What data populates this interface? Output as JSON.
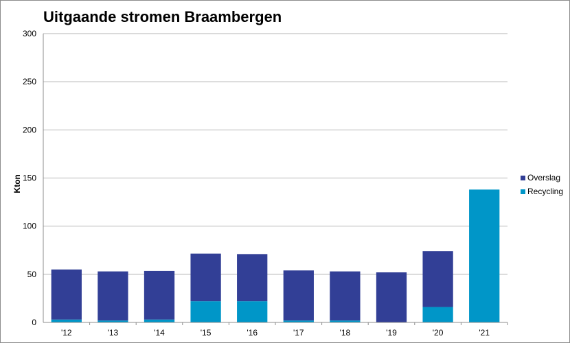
{
  "chart_data": {
    "type": "bar",
    "stacked": true,
    "title": "Uitgaande stromen Braambergen",
    "xlabel": "",
    "ylabel": "Kton",
    "ylim": [
      0,
      300
    ],
    "yticks": [
      0,
      50,
      100,
      150,
      200,
      250,
      300
    ],
    "grid": true,
    "legend_position": "right",
    "categories": [
      "'12",
      "'13",
      "'14",
      "'15",
      "'16",
      "'17",
      "'18",
      "'19",
      "'20",
      "'21"
    ],
    "series": [
      {
        "name": "Recycling",
        "color": "#0096c8",
        "values": [
          3,
          2,
          3,
          22,
          22,
          2,
          2,
          0,
          16,
          138
        ]
      },
      {
        "name": "Overslag",
        "color": "#323f96",
        "values": [
          52,
          51,
          50.5,
          49.5,
          49,
          52,
          51,
          52,
          58,
          0
        ]
      }
    ],
    "legend_order": [
      "Overslag",
      "Recycling"
    ]
  }
}
